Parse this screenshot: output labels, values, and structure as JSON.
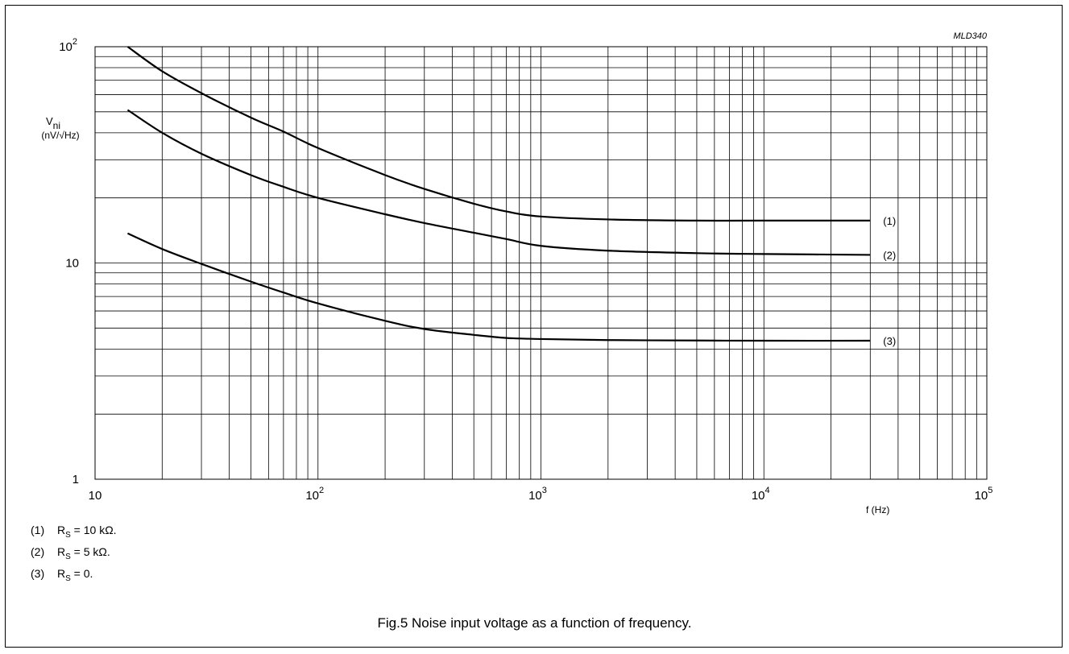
{
  "chart_data": {
    "type": "line",
    "x_scale": "log",
    "y_scale": "log",
    "xlim": [
      10,
      100000
    ],
    "ylim": [
      1,
      100
    ],
    "xlabel": "f  (Hz)",
    "ylabel_main": "V",
    "ylabel_sub": "ni",
    "ylabel_unit": "(nV/√Hz)",
    "code": "MLD340",
    "x_ticks": [
      {
        "value": 10,
        "base": "10",
        "exp": ""
      },
      {
        "value": 100,
        "base": "10",
        "exp": "2"
      },
      {
        "value": 1000,
        "base": "10",
        "exp": "3"
      },
      {
        "value": 10000,
        "base": "10",
        "exp": "4"
      },
      {
        "value": 100000,
        "base": "10",
        "exp": "5"
      }
    ],
    "y_ticks": [
      {
        "value": 1,
        "base": "1",
        "exp": ""
      },
      {
        "value": 10,
        "base": "10",
        "exp": ""
      },
      {
        "value": 100,
        "base": "10",
        "exp": "2"
      }
    ],
    "grid": true,
    "series": [
      {
        "name": "(1)",
        "x": [
          14,
          20,
          30,
          50,
          70,
          100,
          200,
          300,
          500,
          700,
          1000,
          2000,
          5000,
          10000,
          30000
        ],
        "y": [
          100,
          77,
          61,
          47,
          40.5,
          34,
          25.5,
          22,
          18.8,
          17.3,
          16.4,
          15.9,
          15.7,
          15.7,
          15.7
        ]
      },
      {
        "name": "(2)",
        "x": [
          14,
          20,
          30,
          50,
          70,
          100,
          200,
          300,
          500,
          700,
          1000,
          2000,
          5000,
          10000,
          30000
        ],
        "y": [
          51,
          40,
          32,
          25.5,
          22.5,
          20,
          16.8,
          15.3,
          13.8,
          12.9,
          12.0,
          11.4,
          11.1,
          11.0,
          10.9
        ]
      },
      {
        "name": "(3)",
        "x": [
          14,
          20,
          30,
          50,
          70,
          100,
          200,
          300,
          500,
          700,
          1000,
          2000,
          5000,
          10000,
          30000
        ],
        "y": [
          13.7,
          11.6,
          9.9,
          8.2,
          7.3,
          6.5,
          5.4,
          4.95,
          4.65,
          4.5,
          4.45,
          4.4,
          4.38,
          4.37,
          4.37
        ]
      }
    ]
  },
  "notes": [
    {
      "num": "(1)",
      "pre": "R",
      "sub": "S",
      "post": " = 10 kΩ."
    },
    {
      "num": "(2)",
      "pre": "R",
      "sub": "S",
      "post": " = 5 kΩ."
    },
    {
      "num": "(3)",
      "pre": "R",
      "sub": "S",
      "post": " = 0."
    }
  ],
  "caption": "Fig.5  Noise input voltage as a function of frequency."
}
